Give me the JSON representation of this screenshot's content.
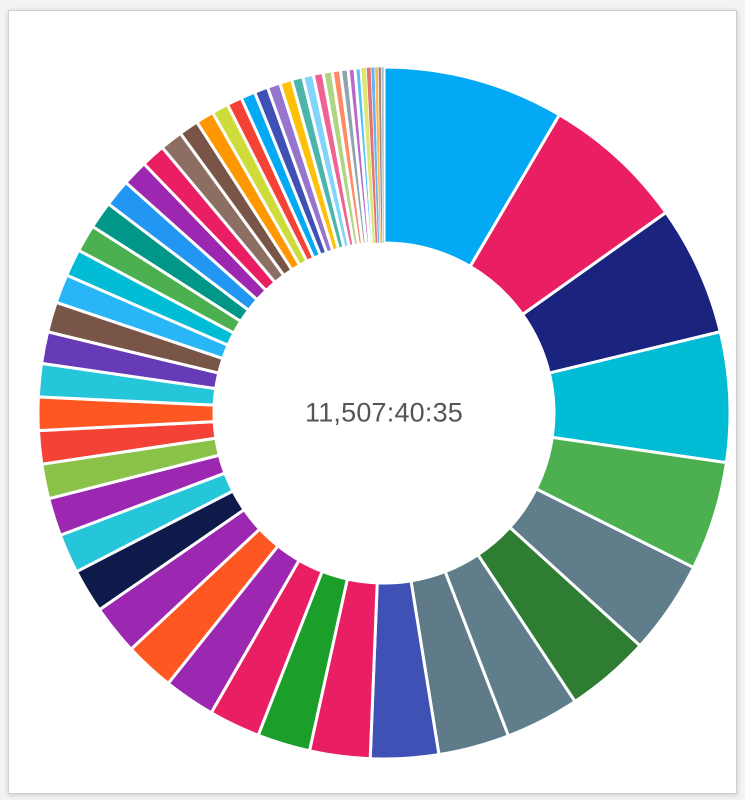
{
  "chart_data": {
    "type": "donut",
    "center_label": "11,507:40:35",
    "legend": "none",
    "values": [
      12,
      9.5,
      8.6,
      8.6,
      7.2,
      6.2,
      5.6,
      4.9,
      4.7,
      4.5,
      4.0,
      3.5,
      3.4,
      3.4,
      3.3,
      3.3,
      2.9,
      2.6,
      2.5,
      2.3,
      2.2,
      2.2,
      2.2,
      2.1,
      2.0,
      1.9,
      1.8,
      1.8,
      1.8,
      1.8,
      1.7,
      1.6,
      1.5,
      1.3,
      1.2,
      1.1,
      1.0,
      0.95,
      0.9,
      0.85,
      0.8,
      0.75,
      0.7,
      0.65,
      0.6,
      0.55,
      0.5,
      0.45,
      0.4,
      0.35,
      0.3,
      0.25,
      0.22,
      0.2,
      0.18
    ],
    "colors": [
      "#03a9f4",
      "#e91e63",
      "#1a237e",
      "#00bcd4",
      "#4caf50",
      "#607d8b",
      "#2e7d32",
      "#607d8b",
      "#5f7a88",
      "#3f51b5",
      "#e91e63",
      "#1b9e2a",
      "#e91e63",
      "#9c27b0",
      "#ff5722",
      "#9c27b0",
      "#0d1a4a",
      "#26c6da",
      "#9c27b0",
      "#8bc34a",
      "#f44336",
      "#ff5722",
      "#26c6da",
      "#673ab7",
      "#795548",
      "#29b6f6",
      "#00bcd4",
      "#4caf50",
      "#009688",
      "#2196f3",
      "#9c27b0",
      "#e91e63",
      "#8d6e63",
      "#795548",
      "#ff9800",
      "#cddc39",
      "#f44336",
      "#03a9f4",
      "#3f51b5",
      "#9575cd",
      "#ffc107",
      "#4db6ac",
      "#81d4fa",
      "#f06292",
      "#aed581",
      "#ff8a65",
      "#90a4ae",
      "#ba68c8",
      "#4fc3f7",
      "#dce775",
      "#e57373",
      "#64b5f6",
      "#ffb74d",
      "#a1887f",
      "#b0bec5"
    ]
  }
}
